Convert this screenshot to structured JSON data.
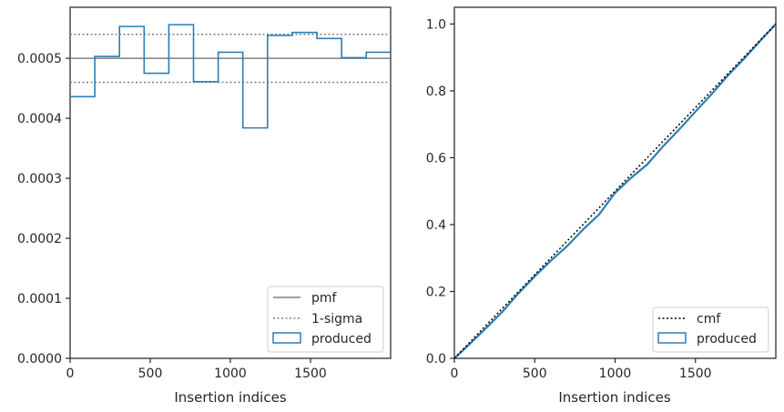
{
  "chart_data": [
    {
      "type": "step",
      "xlabel": "Insertion indices",
      "ylabel": "",
      "xlim": [
        0,
        2000
      ],
      "ylim": [
        0,
        0.000585
      ],
      "x_ticks": [
        0,
        500,
        1000,
        1500
      ],
      "x_tick_labels": [
        "0",
        "500",
        "1000",
        "1500"
      ],
      "y_ticks": [
        0,
        0.0001,
        0.0002,
        0.0003,
        0.0004,
        0.0005
      ],
      "y_tick_labels": [
        "0.0000",
        "0.0001",
        "0.0002",
        "0.0003",
        "0.0004",
        "0.0005"
      ],
      "pmf": 0.0005,
      "sigma_band": [
        0.00046,
        0.00054
      ],
      "produced": {
        "bin_edges": [
          0,
          154,
          308,
          462,
          616,
          770,
          924,
          1078,
          1232,
          1386,
          1540,
          1694,
          1848,
          2000
        ],
        "values": [
          0.000436,
          0.000503,
          0.000553,
          0.000475,
          0.000556,
          0.000461,
          0.00051,
          0.000384,
          0.000538,
          0.000543,
          0.000533,
          0.000501,
          0.00051
        ]
      },
      "legend": {
        "position": "lower-right",
        "entries": [
          "pmf",
          "1-sigma",
          "produced"
        ]
      }
    },
    {
      "type": "line",
      "xlabel": "Insertion indices",
      "ylabel": "",
      "xlim": [
        0,
        2000
      ],
      "ylim": [
        0,
        1.05
      ],
      "x_ticks": [
        0,
        500,
        1000,
        1500
      ],
      "x_tick_labels": [
        "0",
        "500",
        "1000",
        "1500"
      ],
      "y_ticks": [
        0,
        0.2,
        0.4,
        0.6,
        0.8,
        1.0
      ],
      "y_tick_labels": [
        "0.0",
        "0.2",
        "0.4",
        "0.6",
        "0.8",
        "1.0"
      ],
      "series": [
        {
          "name": "cmf",
          "x": [
            0,
            2000
          ],
          "y": [
            0,
            1.0
          ]
        },
        {
          "name": "produced",
          "x": [
            0,
            100,
            200,
            300,
            400,
            500,
            600,
            700,
            800,
            900,
            1000,
            1100,
            1200,
            1300,
            1400,
            1500,
            1600,
            1700,
            1800,
            1900,
            2000
          ],
          "y": [
            0,
            0.045,
            0.092,
            0.14,
            0.195,
            0.245,
            0.292,
            0.335,
            0.385,
            0.43,
            0.495,
            0.54,
            0.58,
            0.635,
            0.685,
            0.738,
            0.79,
            0.845,
            0.895,
            0.948,
            1.0
          ]
        }
      ],
      "legend": {
        "position": "lower-right",
        "entries": [
          "cmf",
          "produced"
        ]
      }
    }
  ],
  "colors": {
    "produced": "#2a7fb5",
    "pmf": "#808080",
    "sigma": "#808080",
    "cmf": "#000000",
    "axis": "#262626"
  }
}
